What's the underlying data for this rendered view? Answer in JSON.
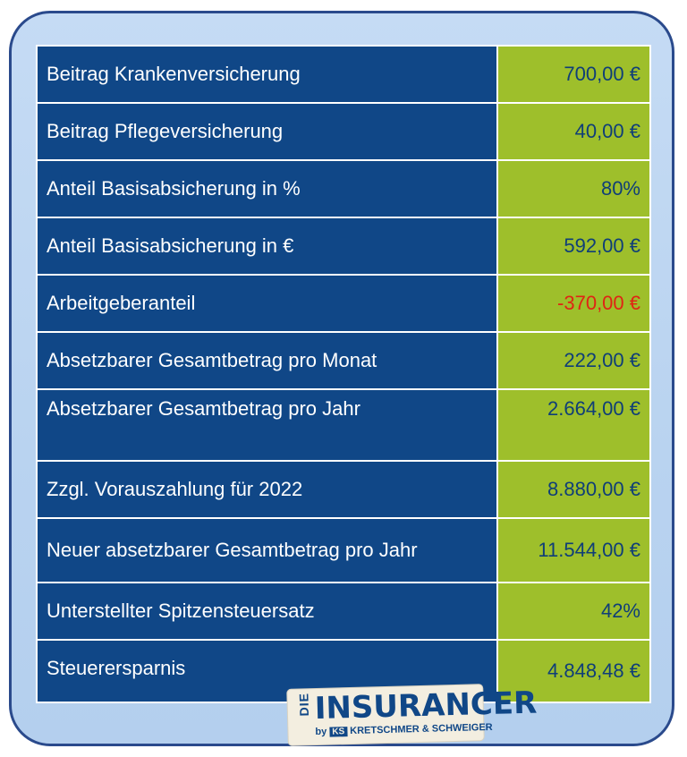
{
  "rows": [
    {
      "label": "Beitrag Krankenversicherung",
      "value": "700,00 €"
    },
    {
      "label": "Beitrag Pflegeversicherung",
      "value": "40,00 €"
    },
    {
      "label": "Anteil Basisabsicherung in %",
      "value": "80%"
    },
    {
      "label": "Anteil Basisabsicherung in €",
      "value": "592,00 €"
    },
    {
      "label": "Arbeitgeberanteil",
      "value": "-370,00 €"
    },
    {
      "label": "Absetzbarer Gesamtbetrag pro Monat",
      "value": "222,00 €"
    },
    {
      "label": "Absetzbarer Gesamtbetrag pro Jahr",
      "value": "2.664,00 €"
    },
    {
      "label": "Zzgl. Vorauszahlung für 2022",
      "value": "8.880,00 €"
    },
    {
      "label": "Neuer absetzbarer Gesamtbetrag pro Jahr",
      "value": "11.544,00 €"
    },
    {
      "label": "Unterstellter Spitzensteuersatz",
      "value": "42%"
    },
    {
      "label": "Steuerersparnis",
      "value": "4.848,48 €"
    }
  ],
  "colors": {
    "label_bg": "#104787",
    "value_bg": "#9ebf2b",
    "value_text": "#0f3e78",
    "negative_text": "#e02414"
  },
  "logo": {
    "prefix": "DIE",
    "brand": "INSURANCER",
    "by": "by",
    "ks": "KS",
    "company": "KRETSCHMER & SCHWEIGER"
  }
}
